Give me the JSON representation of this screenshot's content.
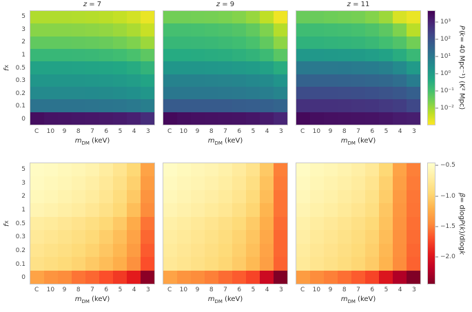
{
  "figure": {
    "background": "#ffffff"
  },
  "colors": {
    "text": "#2b2b2b",
    "tick_text": "#4a4a4a",
    "spine": "#c9c9c9",
    "tick_mark": "#777777"
  },
  "axes": {
    "x_label": "m_DM (keV)",
    "y_label": "f_X",
    "x_label_segments": [
      {
        "t": "m",
        "i": 1
      },
      {
        "t": "DM",
        "s": 1
      },
      {
        "t": " (keV)"
      }
    ],
    "y_label_segments": [
      {
        "t": "f",
        "i": 1
      },
      {
        "t": "X",
        "s": 1
      }
    ],
    "x_ticks": [
      "C",
      "10",
      "9",
      "8",
      "7",
      "6",
      "5",
      "4",
      "3"
    ],
    "y_ticks": [
      "5",
      "3",
      "2",
      "1",
      "0.5",
      "0.3",
      "0.2",
      "0.1",
      "0"
    ]
  },
  "chart_data": {
    "type": "heatmap",
    "x_categories": [
      "C",
      "10",
      "9",
      "8",
      "7",
      "6",
      "5",
      "4",
      "3"
    ],
    "y_categories": [
      "5",
      "3",
      "2",
      "1",
      "0.5",
      "0.3",
      "0.2",
      "0.1",
      "0"
    ],
    "xlabel": "m_DM (keV)",
    "ylabel": "f_X",
    "row_groups": [
      {
        "name": "power-spectrum",
        "colormap": "viridis-reversed",
        "colormap_stops": [
          "#440154",
          "#482475",
          "#414487",
          "#355f8d",
          "#2a788e",
          "#21918c",
          "#22a884",
          "#44bf70",
          "#7ad151",
          "#bddf26",
          "#fde725"
        ],
        "value_scale": "log10",
        "vmin": -3.0,
        "vmax": 3.7,
        "colorbar": {
          "label": "P(k = 40 Mpc⁻¹) (K² Mpc)",
          "label_segments": [
            {
              "t": "P",
              "i": 1
            },
            {
              "t": "("
            },
            {
              "t": "k",
              "i": 1
            },
            {
              "t": " = 40 Mpc⁻¹) (K² Mpc)"
            }
          ],
          "tick_labels": [
            "10³",
            "10²",
            "10¹",
            "10⁰",
            "10⁻¹",
            "10⁻²"
          ],
          "tick_values": [
            3,
            2,
            1,
            0,
            -1,
            -2
          ]
        },
        "panels": [
          {
            "title": "z = 7",
            "title_segments": [
              {
                "t": "z",
                "i": 1
              },
              {
                "t": " = 7"
              }
            ],
            "values": [
              [
                -2.2,
                -2.2,
                -2.2,
                -2.22,
                -2.25,
                -2.3,
                -2.4,
                -2.55,
                -2.8
              ],
              [
                -1.8,
                -1.8,
                -1.8,
                -1.82,
                -1.85,
                -1.9,
                -2.0,
                -2.15,
                -2.45
              ],
              [
                -1.35,
                -1.35,
                -1.35,
                -1.37,
                -1.4,
                -1.45,
                -1.55,
                -1.7,
                -2.0
              ],
              [
                -0.75,
                -0.75,
                -0.75,
                -0.77,
                -0.8,
                -0.85,
                -0.92,
                -1.05,
                -1.3
              ],
              [
                -0.15,
                -0.15,
                -0.15,
                -0.17,
                -0.2,
                -0.23,
                -0.3,
                -0.42,
                -0.65
              ],
              [
                0.2,
                0.2,
                0.2,
                0.2,
                0.18,
                0.15,
                0.1,
                0.0,
                -0.2
              ],
              [
                0.55,
                0.55,
                0.55,
                0.55,
                0.53,
                0.5,
                0.45,
                0.38,
                0.2
              ],
              [
                1.15,
                1.15,
                1.15,
                1.15,
                1.13,
                1.1,
                1.07,
                1.0,
                0.85
              ],
              [
                3.45,
                3.35,
                3.33,
                3.3,
                3.28,
                3.25,
                3.2,
                3.1,
                2.85
              ]
            ]
          },
          {
            "title": "z = 9",
            "title_segments": [
              {
                "t": "z",
                "i": 1
              },
              {
                "t": " = 9"
              }
            ],
            "values": [
              [
                -1.55,
                -1.55,
                -1.57,
                -1.6,
                -1.65,
                -1.75,
                -1.95,
                -2.35,
                -2.85
              ],
              [
                -1.0,
                -1.0,
                -1.02,
                -1.05,
                -1.1,
                -1.18,
                -1.35,
                -1.7,
                -2.25
              ],
              [
                -0.75,
                -0.75,
                -0.77,
                -0.8,
                -0.85,
                -0.92,
                -1.05,
                -1.35,
                -1.85
              ],
              [
                -0.4,
                -0.4,
                -0.42,
                -0.45,
                -0.48,
                -0.55,
                -0.65,
                -0.85,
                -1.25
              ],
              [
                0.2,
                0.2,
                0.2,
                0.18,
                0.15,
                0.1,
                0.02,
                -0.12,
                -0.45
              ],
              [
                0.75,
                0.75,
                0.75,
                0.73,
                0.7,
                0.67,
                0.6,
                0.5,
                0.25
              ],
              [
                1.05,
                1.05,
                1.05,
                1.05,
                1.02,
                1.0,
                0.95,
                0.87,
                0.7
              ],
              [
                1.8,
                1.8,
                1.8,
                1.8,
                1.78,
                1.75,
                1.72,
                1.65,
                1.55
              ],
              [
                3.55,
                3.45,
                3.42,
                3.4,
                3.38,
                3.35,
                3.3,
                3.2,
                3.0
              ]
            ]
          },
          {
            "title": "z = 11",
            "title_segments": [
              {
                "t": "z",
                "i": 1
              },
              {
                "t": " = 11"
              }
            ],
            "values": [
              [
                -1.45,
                -1.45,
                -1.5,
                -1.55,
                -1.6,
                -1.75,
                -2.0,
                -2.6,
                -2.8
              ],
              [
                -0.9,
                -0.9,
                -0.93,
                -0.97,
                -1.02,
                -1.12,
                -1.3,
                -1.7,
                -2.3
              ],
              [
                -0.6,
                -0.6,
                -0.63,
                -0.66,
                -0.7,
                -0.8,
                -0.95,
                -1.15,
                -1.55
              ],
              [
                0.15,
                0.15,
                0.13,
                0.1,
                0.05,
                -0.02,
                -0.15,
                -0.45,
                -0.8
              ],
              [
                1.0,
                1.0,
                1.0,
                0.98,
                0.95,
                0.9,
                0.8,
                0.55,
                0.1
              ],
              [
                1.6,
                1.6,
                1.6,
                1.58,
                1.55,
                1.5,
                1.45,
                1.3,
                0.9
              ],
              [
                2.15,
                2.15,
                2.15,
                2.13,
                2.1,
                2.05,
                2.0,
                1.9,
                1.7
              ],
              [
                2.75,
                2.75,
                2.75,
                2.73,
                2.7,
                2.67,
                2.6,
                2.5,
                2.25
              ],
              [
                3.55,
                3.45,
                3.42,
                3.4,
                3.38,
                3.35,
                3.3,
                3.2,
                3.15
              ]
            ]
          }
        ]
      },
      {
        "name": "slope-beta",
        "colormap": "ylorrd-reversed",
        "colormap_stops": [
          "#ffffcc",
          "#ffeda0",
          "#fed976",
          "#feb24c",
          "#fd8d3c",
          "#fc4e2a",
          "#e31a1c",
          "#bd0026",
          "#800026"
        ],
        "value_scale": "linear",
        "vmin": -2.45,
        "vmax": -0.45,
        "colorbar": {
          "label": "β = dlogP(k)/dlogk",
          "label_segments": [
            {
              "t": "β",
              "i": 1
            },
            {
              "t": " = dlog"
            },
            {
              "t": "P",
              "i": 1
            },
            {
              "t": "("
            },
            {
              "t": "k",
              "i": 1
            },
            {
              "t": ")/dlog"
            },
            {
              "t": "k",
              "i": 1
            }
          ],
          "tick_labels": [
            "−0.5",
            "−1.0",
            "−1.5",
            "−2.0"
          ],
          "tick_values": [
            -0.5,
            -1.0,
            -1.5,
            -2.0
          ]
        },
        "panels": [
          {
            "title": "",
            "values": [
              [
                -0.5,
                -0.52,
                -0.55,
                -0.58,
                -0.62,
                -0.7,
                -0.8,
                -0.95,
                -1.3
              ],
              [
                -0.52,
                -0.55,
                -0.58,
                -0.62,
                -0.67,
                -0.75,
                -0.85,
                -1.0,
                -1.35
              ],
              [
                -0.55,
                -0.58,
                -0.62,
                -0.66,
                -0.71,
                -0.79,
                -0.9,
                -1.05,
                -1.4
              ],
              [
                -0.6,
                -0.63,
                -0.67,
                -0.71,
                -0.77,
                -0.85,
                -0.95,
                -1.12,
                -1.45
              ],
              [
                -0.7,
                -0.73,
                -0.77,
                -0.82,
                -0.88,
                -0.95,
                -1.05,
                -1.25,
                -1.55
              ],
              [
                -0.75,
                -0.79,
                -0.83,
                -0.88,
                -0.94,
                -1.02,
                -1.12,
                -1.3,
                -1.6
              ],
              [
                -0.8,
                -0.84,
                -0.88,
                -0.93,
                -0.99,
                -1.07,
                -1.17,
                -1.35,
                -1.65
              ],
              [
                -0.85,
                -0.89,
                -0.93,
                -0.98,
                -1.05,
                -1.13,
                -1.23,
                -1.42,
                -1.7
              ],
              [
                -1.3,
                -1.4,
                -1.45,
                -1.55,
                -1.6,
                -1.7,
                -1.8,
                -1.95,
                -2.4
              ]
            ]
          },
          {
            "title": "",
            "values": [
              [
                -0.5,
                -0.54,
                -0.57,
                -0.6,
                -0.65,
                -0.72,
                -0.82,
                -1.05,
                -1.5
              ],
              [
                -0.53,
                -0.57,
                -0.6,
                -0.64,
                -0.69,
                -0.76,
                -0.87,
                -1.1,
                -1.52
              ],
              [
                -0.56,
                -0.6,
                -0.64,
                -0.68,
                -0.73,
                -0.8,
                -0.92,
                -1.13,
                -1.55
              ],
              [
                -0.6,
                -0.64,
                -0.68,
                -0.73,
                -0.78,
                -0.86,
                -0.97,
                -1.18,
                -1.55
              ],
              [
                -0.66,
                -0.7,
                -0.75,
                -0.8,
                -0.86,
                -0.93,
                -1.04,
                -1.23,
                -1.58
              ],
              [
                -0.7,
                -0.74,
                -0.79,
                -0.84,
                -0.9,
                -0.98,
                -1.08,
                -1.27,
                -1.6
              ],
              [
                -0.73,
                -0.77,
                -0.82,
                -0.87,
                -0.93,
                -1.01,
                -1.11,
                -1.3,
                -1.6
              ],
              [
                -0.76,
                -0.8,
                -0.85,
                -0.9,
                -0.96,
                -1.04,
                -1.15,
                -1.33,
                -1.62
              ],
              [
                -1.3,
                -1.4,
                -1.45,
                -1.5,
                -1.58,
                -1.65,
                -1.75,
                -2.1,
                -2.45
              ]
            ]
          },
          {
            "title": "",
            "values": [
              [
                -0.5,
                -0.55,
                -0.58,
                -0.62,
                -0.67,
                -0.75,
                -0.95,
                -1.3,
                -1.5
              ],
              [
                -0.53,
                -0.58,
                -0.62,
                -0.66,
                -0.71,
                -0.8,
                -1.0,
                -1.33,
                -1.52
              ],
              [
                -0.56,
                -0.61,
                -0.65,
                -0.7,
                -0.75,
                -0.84,
                -1.03,
                -1.36,
                -1.54
              ],
              [
                -0.6,
                -0.65,
                -0.69,
                -0.74,
                -0.8,
                -0.88,
                -1.07,
                -1.38,
                -1.55
              ],
              [
                -0.65,
                -0.7,
                -0.75,
                -0.8,
                -0.86,
                -0.94,
                -1.1,
                -1.4,
                -1.57
              ],
              [
                -0.68,
                -0.74,
                -0.79,
                -0.84,
                -0.9,
                -0.98,
                -1.13,
                -1.42,
                -1.58
              ],
              [
                -0.71,
                -0.77,
                -0.82,
                -0.87,
                -0.93,
                -1.01,
                -1.16,
                -1.43,
                -1.6
              ],
              [
                -0.74,
                -0.8,
                -0.85,
                -0.9,
                -0.96,
                -1.04,
                -1.19,
                -1.45,
                -1.62
              ],
              [
                -1.35,
                -1.45,
                -1.5,
                -1.57,
                -1.65,
                -1.75,
                -2.0,
                -2.25,
                -2.45
              ]
            ]
          }
        ]
      }
    ]
  }
}
